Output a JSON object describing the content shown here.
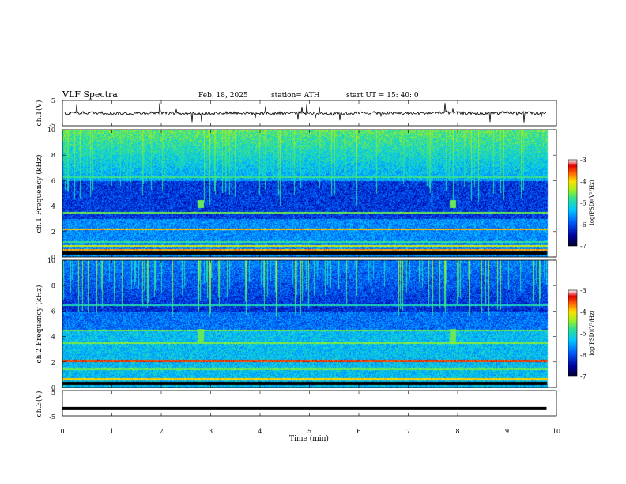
{
  "header": {
    "title": "VLF  Spectra",
    "date": "Feb. 18, 2025",
    "station": "station= ATH",
    "start_ut": "start  UT  =   15: 40: 0"
  },
  "chart_data": [
    {
      "type": "line",
      "title": "",
      "ylabel": "ch.1(V)",
      "xlabel": "",
      "xlim": [
        0,
        10
      ],
      "ylim": [
        -5,
        5
      ],
      "yticks": [
        "5",
        "-5"
      ],
      "x": [
        0,
        1,
        2,
        3,
        4,
        5,
        6,
        7,
        8,
        9,
        9.8
      ],
      "values": [
        0,
        0.1,
        -0.1,
        0.2,
        0.1,
        -0.1,
        0.1,
        0,
        -0.2,
        0,
        0
      ],
      "grid": false
    },
    {
      "type": "heatmap",
      "title": "",
      "ylabel": "ch.1  Frequency  (kHz)",
      "xlabel": "",
      "xlim": [
        0,
        10
      ],
      "ylim": [
        0,
        10
      ],
      "yticks": [
        "10",
        "8",
        "6",
        "4",
        "2",
        "0"
      ],
      "colorbar": {
        "label": "log(PSD)(V²/Hz)",
        "ticks": [
          "-3",
          "-4",
          "-5",
          "-6",
          "-7"
        ],
        "range": [
          -7,
          -3
        ]
      },
      "notable_features": [
        {
          "x_min": 2.8,
          "freq_khz": [
            3.9,
            4.5
          ]
        },
        {
          "x_min": 7.9,
          "freq_khz": [
            3.9,
            4.5
          ]
        }
      ]
    },
    {
      "type": "heatmap",
      "title": "",
      "ylabel": "ch.2  Frequency  (kHz)",
      "xlabel": "",
      "xlim": [
        0,
        10
      ],
      "ylim": [
        0,
        10
      ],
      "yticks": [
        "10",
        "8",
        "6",
        "4",
        "2",
        "0"
      ],
      "colorbar": {
        "label": "log(PSD)(V²/Hz)",
        "ticks": [
          "-3",
          "-4",
          "-5",
          "-6",
          "-7"
        ],
        "range": [
          -7,
          -3
        ]
      },
      "notable_features": [
        {
          "x_min": 2.8,
          "freq_khz": [
            3.6,
            4.6
          ]
        },
        {
          "x_min": 7.9,
          "freq_khz": [
            3.6,
            4.6
          ]
        }
      ]
    },
    {
      "type": "line",
      "title": "",
      "ylabel": "ch.3(V)",
      "xlabel": "Time  (min)",
      "xlim": [
        0,
        10
      ],
      "ylim": [
        -5,
        5
      ],
      "yticks": [
        "5",
        "-5"
      ],
      "xticks": [
        "0",
        "1",
        "2",
        "3",
        "4",
        "5",
        "6",
        "7",
        "8",
        "9",
        "10"
      ],
      "x": [
        0,
        9.8
      ],
      "values": [
        -2,
        -2
      ],
      "grid": false
    }
  ]
}
